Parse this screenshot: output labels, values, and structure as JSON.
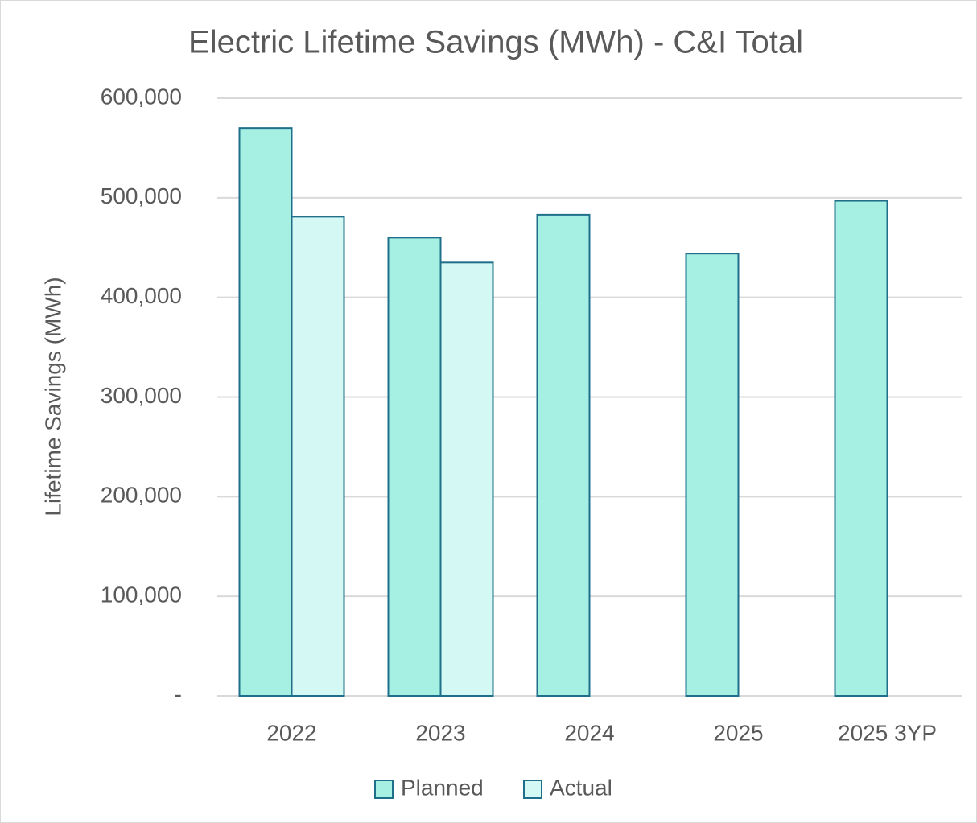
{
  "chart_data": {
    "type": "bar",
    "title": "Electric Lifetime Savings (MWh) - C&I Total",
    "y_label": "Lifetime Savings (MWh)",
    "categories": [
      "2022",
      "2023",
      "2024",
      "2025",
      "2025 3YP"
    ],
    "series": [
      {
        "name": "Planned",
        "color": "#a6f0e3",
        "values": [
          570000,
          460000,
          483000,
          444000,
          497000
        ]
      },
      {
        "name": "Actual",
        "color": "#d4f8f3",
        "values": [
          481000,
          435000,
          null,
          null,
          null
        ]
      }
    ],
    "bar_edge_color": "#1f6f8b",
    "ylim": [
      0,
      600000
    ],
    "yticks": [
      {
        "value": 0,
        "label": "-"
      },
      {
        "value": 100000,
        "label": "100,000"
      },
      {
        "value": 200000,
        "label": "200,000"
      },
      {
        "value": 300000,
        "label": "300,000"
      },
      {
        "value": 400000,
        "label": "400,000"
      },
      {
        "value": 500000,
        "label": "500,000"
      },
      {
        "value": 600000,
        "label": "600,000"
      }
    ],
    "grid": true,
    "legend": "bottom"
  }
}
